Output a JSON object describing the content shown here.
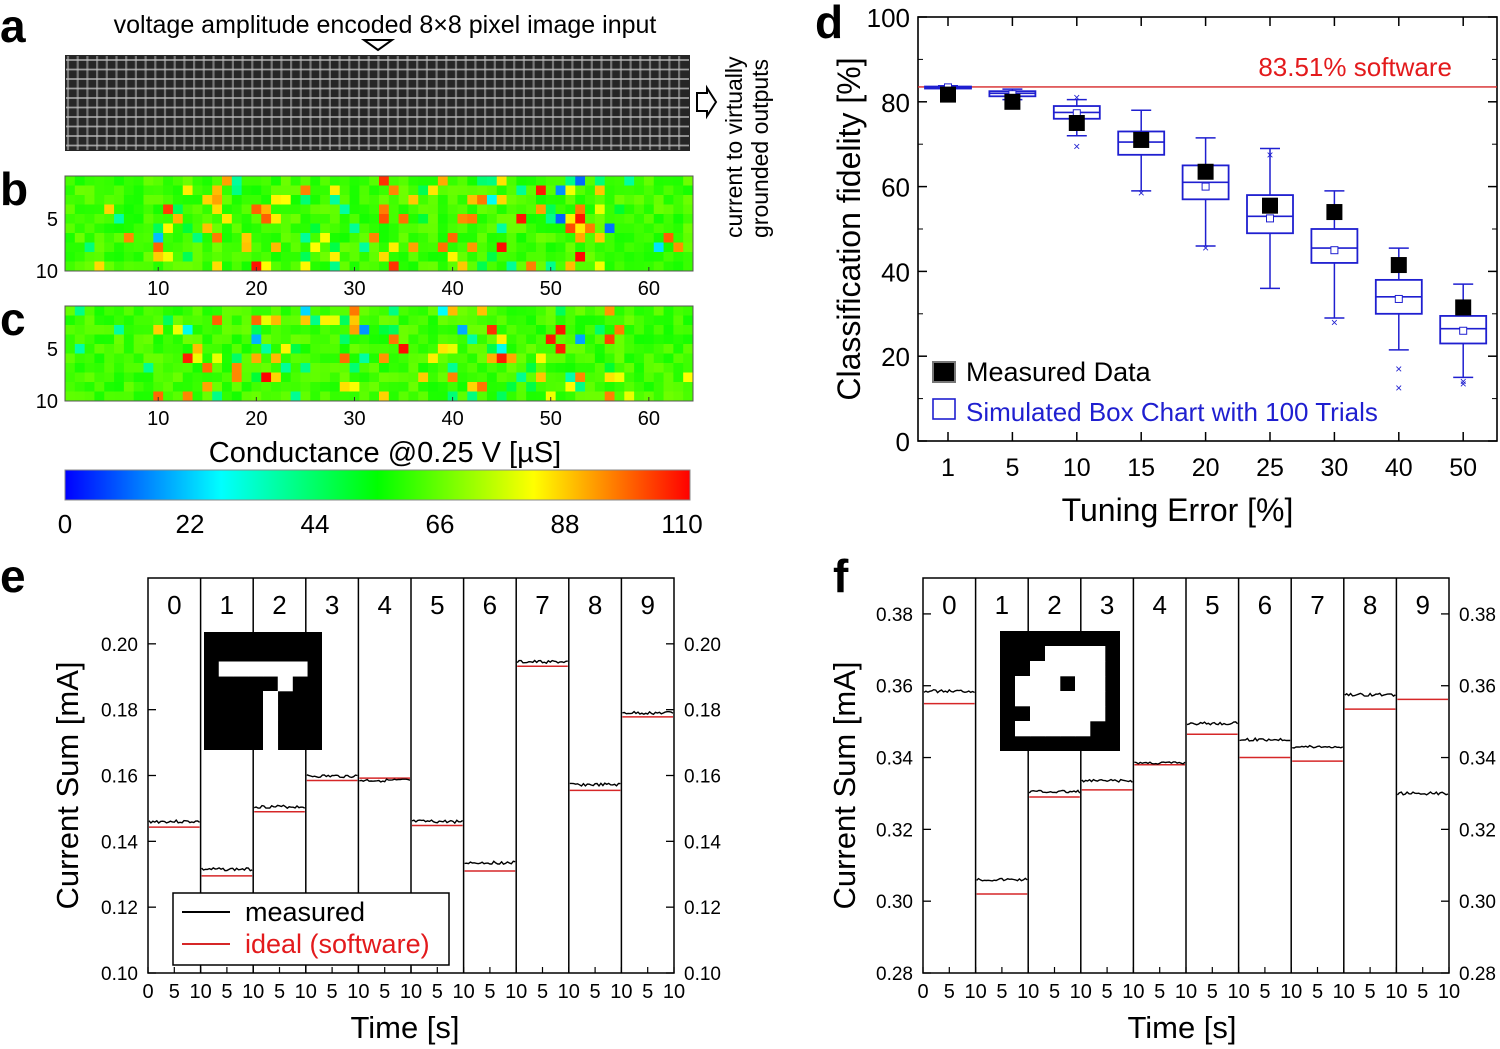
{
  "panel_letters": [
    "a",
    "b",
    "c",
    "d",
    "e",
    "f"
  ],
  "panel_a": {
    "title": "voltage amplitude encoded 8×8 pixel image input",
    "side_label_line1": "current to virtually",
    "side_label_line2": "grounded outputs"
  },
  "heatmap_b": {
    "x_ticks": [
      "10",
      "20",
      "30",
      "40",
      "50",
      "60"
    ],
    "y_ticks": [
      "5",
      "10"
    ],
    "seed": 7
  },
  "heatmap_c": {
    "x_ticks": [
      "10",
      "20",
      "30",
      "40",
      "50",
      "60"
    ],
    "y_ticks": [
      "5",
      "10"
    ],
    "seed": 11
  },
  "colorbar": {
    "title": "Conductance  @0.25 V [µS]",
    "ticks": [
      "0",
      "22",
      "44",
      "66",
      "88",
      "110"
    ],
    "colors": [
      "#0000ff",
      "#00ffff",
      "#00ff00",
      "#ffff00",
      "#ff0000"
    ]
  },
  "chart_data": [
    {
      "id": "d",
      "type": "box",
      "title": "",
      "xlabel": "Tuning Error [%]",
      "ylabel": "Classification fidelity  [%]",
      "ylim": [
        0,
        100
      ],
      "y_ticks": [
        "0",
        "20",
        "40",
        "60",
        "80",
        "100"
      ],
      "categories": [
        "1",
        "5",
        "10",
        "15",
        "20",
        "25",
        "30",
        "40",
        "50"
      ],
      "reference_line": {
        "value": 83.51,
        "label": "83.51% software"
      },
      "measured": [
        81.7,
        80.0,
        75.0,
        71.0,
        63.5,
        55.5,
        54.0,
        41.5,
        31.5
      ],
      "simulated_boxes": [
        {
          "min": 83.2,
          "q1": 83.3,
          "median": 83.4,
          "q3": 83.6,
          "max": 83.8,
          "mean": 83.4,
          "outliers": []
        },
        {
          "min": 80.5,
          "q1": 81.3,
          "median": 82.0,
          "q3": 82.5,
          "max": 83.0,
          "mean": 81.8,
          "outliers": [
            80.2
          ]
        },
        {
          "min": 72.0,
          "q1": 76.0,
          "median": 77.5,
          "q3": 79.0,
          "max": 80.5,
          "mean": 77.3,
          "outliers": [
            69.5,
            81.0
          ]
        },
        {
          "min": 59.0,
          "q1": 67.5,
          "median": 70.5,
          "q3": 73.0,
          "max": 78.0,
          "mean": 70.5,
          "outliers": [
            58.5
          ]
        },
        {
          "min": 46.0,
          "q1": 57.0,
          "median": 61.0,
          "q3": 65.0,
          "max": 71.5,
          "mean": 60.0,
          "outliers": [
            45.5
          ]
        },
        {
          "min": 36.0,
          "q1": 49.0,
          "median": 53.0,
          "q3": 58.0,
          "max": 69.0,
          "mean": 52.5,
          "outliers": [
            67.5
          ]
        },
        {
          "min": 29.0,
          "q1": 42.0,
          "median": 45.5,
          "q3": 50.0,
          "max": 59.0,
          "mean": 45.0,
          "outliers": [
            28.0
          ]
        },
        {
          "min": 21.5,
          "q1": 30.0,
          "median": 34.0,
          "q3": 38.0,
          "max": 45.5,
          "mean": 33.5,
          "outliers": [
            17.0,
            12.5
          ]
        },
        {
          "min": 15.0,
          "q1": 23.0,
          "median": 26.5,
          "q3": 29.5,
          "max": 37.0,
          "mean": 26.0,
          "outliers": [
            13.5,
            14.0
          ]
        }
      ],
      "legend": [
        "Measured Data",
        "Simulated Box Chart with 100 Trials"
      ]
    },
    {
      "id": "e",
      "type": "line",
      "xlabel": "Time [s]",
      "ylabel": "Current Sum [mA]",
      "ylim": [
        0.1,
        0.22
      ],
      "y_ticks": [
        "0.10",
        "0.12",
        "0.14",
        "0.16",
        "0.18",
        "0.20"
      ],
      "segment_labels": [
        "0",
        "1",
        "2",
        "3",
        "4",
        "5",
        "6",
        "7",
        "8",
        "9"
      ],
      "x_ticks": [
        "0",
        "5",
        "10",
        "5",
        "10",
        "5",
        "10",
        "5",
        "10",
        "5",
        "10",
        "5",
        "10",
        "5",
        "10",
        "5",
        "10",
        "5",
        "10",
        "5",
        "10"
      ],
      "series": [
        {
          "name": "measured",
          "values": [
            0.146,
            0.1315,
            0.1505,
            0.1598,
            0.1585,
            0.146,
            0.1335,
            0.1945,
            0.1572,
            0.179
          ]
        },
        {
          "name": "ideal (software)",
          "values": [
            0.1443,
            0.1295,
            0.149,
            0.1585,
            0.1592,
            0.1448,
            0.131,
            0.1932,
            0.1555,
            0.1778
          ]
        }
      ],
      "legend": [
        "measured",
        "ideal (software)"
      ],
      "inset_pattern": [
        "11111111",
        "11111111",
        "10000001",
        "11111011",
        "11110111",
        "11110111",
        "11110111",
        "11110111"
      ]
    },
    {
      "id": "f",
      "type": "line",
      "xlabel": "Time [s]",
      "ylabel": "Current Sum [mA]",
      "ylim": [
        0.28,
        0.39
      ],
      "y_ticks": [
        "0.28",
        "0.30",
        "0.32",
        "0.34",
        "0.36",
        "0.38"
      ],
      "segment_labels": [
        "0",
        "1",
        "2",
        "3",
        "4",
        "5",
        "6",
        "7",
        "8",
        "9"
      ],
      "x_ticks": [
        "0",
        "5",
        "10",
        "5",
        "10",
        "5",
        "10",
        "5",
        "10",
        "5",
        "10",
        "5",
        "10",
        "5",
        "10",
        "5",
        "10",
        "5",
        "10",
        "5",
        "10"
      ],
      "series": [
        {
          "name": "measured",
          "values": [
            0.3585,
            0.306,
            0.3305,
            0.3335,
            0.3385,
            0.3495,
            0.345,
            0.343,
            0.3575,
            0.33
          ]
        },
        {
          "name": "ideal (software)",
          "values": [
            0.355,
            0.302,
            0.329,
            0.331,
            0.338,
            0.3465,
            0.34,
            0.339,
            0.3535,
            0.3562
          ]
        }
      ],
      "inset_pattern": [
        "11111111",
        "11100001",
        "11000001",
        "10001001",
        "10000001",
        "11000001",
        "10000011",
        "11111111"
      ]
    }
  ]
}
